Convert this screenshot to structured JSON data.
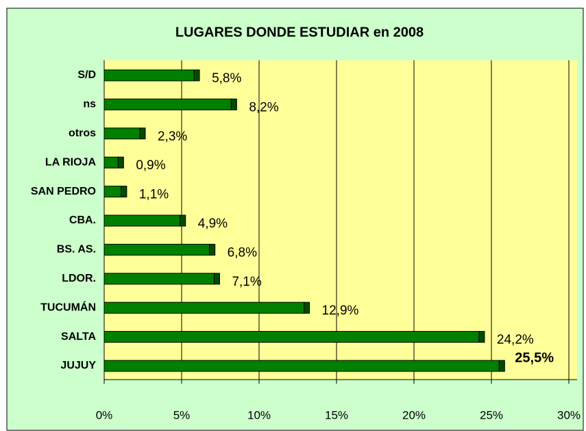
{
  "chart_data": {
    "type": "bar",
    "orientation": "horizontal",
    "title": "LUGARES DONDE  ESTUDIAR en 2008",
    "categories": [
      "S/D",
      "ns",
      "otros",
      "LA RIOJA",
      "SAN PEDRO",
      "CBA.",
      "BS. AS.",
      "LDOR.",
      "TUCUMÁN",
      "SALTA",
      "JUJUY"
    ],
    "values": [
      5.8,
      8.2,
      2.3,
      0.9,
      1.1,
      4.9,
      6.8,
      7.1,
      12.9,
      24.2,
      25.5
    ],
    "value_labels": [
      "5,8%",
      "8,2%",
      "2,3%",
      "0,9%",
      "1,1%",
      "4,9%",
      "6,8%",
      "7,1%",
      "12,9%",
      "24,2%",
      "25,5%"
    ],
    "color": "#008000",
    "xlim": [
      0,
      30
    ],
    "xticks": [
      {
        "value": 0,
        "label": "0%"
      },
      {
        "value": 5,
        "label": "5%"
      },
      {
        "value": 10,
        "label": "10%"
      },
      {
        "value": 15,
        "label": "15%"
      },
      {
        "value": 20,
        "label": "20%"
      },
      {
        "value": 25,
        "label": "25%"
      },
      {
        "value": 30,
        "label": "30%"
      }
    ],
    "grid": true
  }
}
